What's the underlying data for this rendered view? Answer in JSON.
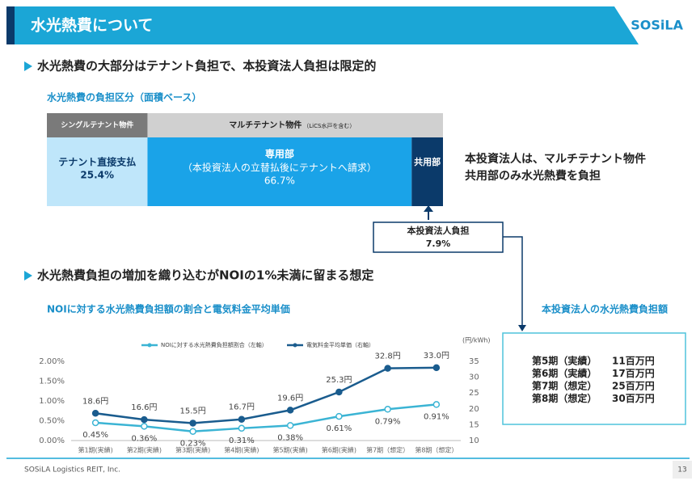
{
  "header": {
    "title": "水光熱費について",
    "logo": "SOSiLA"
  },
  "section1": {
    "heading": "水光熱費の大部分はテナント負担で、本投資法人負担は限定的",
    "breakdown": {
      "title": "水光熱費の負担区分（面積ベース）",
      "groups": [
        {
          "name": "シングルテナント物件"
        },
        {
          "name": "マルチテナント物件",
          "note": "（LiCS水戸を含む）"
        }
      ],
      "segments": [
        {
          "name": "テナント直接支払",
          "value": 25.4,
          "value_label": "25.4%"
        },
        {
          "name": "専用部",
          "note": "（本投資法人の立替払後にテナントへ請求）",
          "value": 66.7,
          "value_label": "66.7%"
        },
        {
          "name": "共用部",
          "value": 7.9
        }
      ],
      "callout": {
        "title": "本投資法人負担",
        "value_label": "7.9%"
      },
      "note": [
        "本投資法人は、マルチテナント物件",
        "共用部のみ水光熱費を負担"
      ]
    }
  },
  "section2": {
    "heading": "水光熱費負担の増加を織り込むがNOIの1%未満に留まる想定",
    "cost_table": {
      "title": "本投資法人の水光熱費負担額",
      "rows": [
        [
          "第5期（実績）",
          "11百万円"
        ],
        [
          "第6期（実績）",
          "17百万円"
        ],
        [
          "第7期（想定）",
          "25百万円"
        ],
        [
          "第8期（想定）",
          "30百万円"
        ]
      ]
    }
  },
  "chart_data": {
    "type": "line",
    "title": "NOIに対する水光熱費負担額の割合と電気料金平均単価",
    "categories": [
      "第1期(実績)",
      "第2期(実績)",
      "第3期(実績)",
      "第4期(実績)",
      "第5期(実績)",
      "第6期(実績)",
      "第7期（想定）",
      "第8期（想定）"
    ],
    "series": [
      {
        "name": "NOIに対する水光熱費負担額割合（左軸）",
        "color": "#3bb4d4",
        "values": [
          0.45,
          0.36,
          0.23,
          0.31,
          0.38,
          0.61,
          0.79,
          0.91
        ],
        "value_labels": [
          "0.45%",
          "0.36%",
          "0.23%",
          "0.31%",
          "0.38%",
          "0.61%",
          "0.79%",
          "0.91%"
        ]
      },
      {
        "name": "電気料金平均単価（右軸）",
        "color": "#1a5c8e",
        "axis": "y2",
        "values": [
          18.6,
          16.6,
          15.5,
          16.7,
          19.6,
          25.3,
          32.8,
          33.0
        ],
        "value_labels": [
          "18.6円",
          "16.6円",
          "15.5円",
          "16.7円",
          "19.6円",
          "25.3円",
          "32.8円",
          "33.0円"
        ]
      }
    ],
    "ylim": [
      0,
      2
    ],
    "yticks": [
      {
        "value": 0,
        "label": "0.00%"
      },
      {
        "value": 0.5,
        "label": "0.50%"
      },
      {
        "value": 1,
        "label": "1.00%"
      },
      {
        "value": 1.5,
        "label": "1.50%"
      },
      {
        "value": 2,
        "label": "2.00%"
      }
    ],
    "y2lim": [
      10,
      35
    ],
    "y2ticks": [
      10,
      15,
      20,
      25,
      30,
      35
    ],
    "y2label": "(円/kWh)"
  },
  "footer": {
    "company": "SOSiLA Logistics REIT, Inc.",
    "page": "13"
  }
}
